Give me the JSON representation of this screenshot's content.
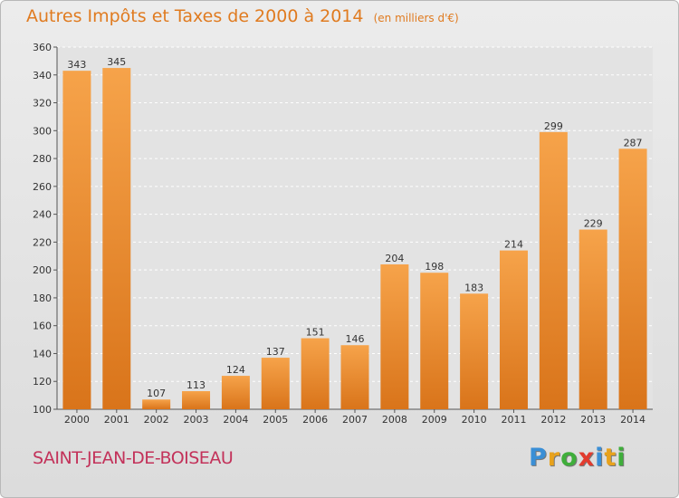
{
  "header": {
    "title": "Autres Impôts et Taxes de 2000 à 2014",
    "unit": "(en milliers d'€)"
  },
  "footer": {
    "town": "SAINT-JEAN-DE-BOISEAU",
    "logo_text": "Proxiti",
    "logo_letters": [
      "P",
      "r",
      "o",
      "x",
      "i",
      "t",
      "i"
    ],
    "logo_colors": [
      "#3a8fd6",
      "#e8a21c",
      "#3fae3b",
      "#e23b2e",
      "#3a8fd6",
      "#e8a21c",
      "#3fae3b"
    ]
  },
  "colors": {
    "bar_light": "#f6a34a",
    "bar_dark": "#d9741a",
    "title": "#e07b20",
    "town": "#c3325a",
    "grid": "#ffffff"
  },
  "chart_data": {
    "type": "bar",
    "title": "Autres Impôts et Taxes de 2000 à 2014",
    "subtitle": "(en milliers d'€)",
    "categories": [
      "2000",
      "2001",
      "2002",
      "2003",
      "2004",
      "2005",
      "2006",
      "2007",
      "2008",
      "2009",
      "2010",
      "2011",
      "2012",
      "2013",
      "2014"
    ],
    "values": [
      343,
      345,
      107,
      113,
      124,
      137,
      151,
      146,
      204,
      198,
      183,
      214,
      299,
      229,
      287
    ],
    "ylim": [
      100,
      360
    ],
    "yticks": [
      100,
      120,
      140,
      160,
      180,
      200,
      220,
      240,
      260,
      280,
      300,
      320,
      340,
      360
    ],
    "grid": true,
    "data_labels": true
  }
}
